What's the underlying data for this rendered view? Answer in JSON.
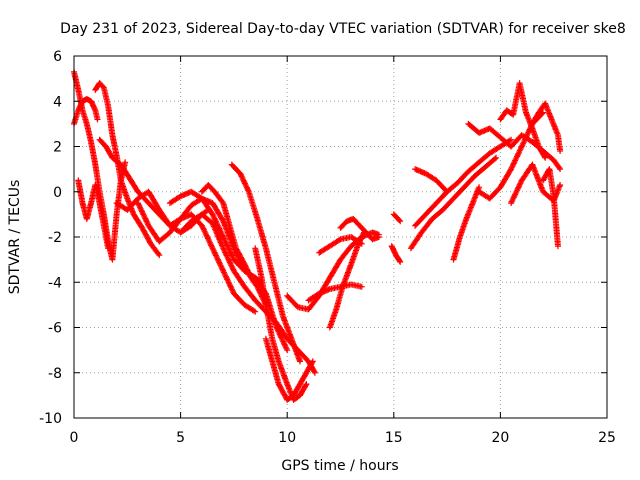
{
  "chart_data": {
    "type": "scatter",
    "title": "Day 231 of 2023, Sidereal Day-to-day VTEC variation (SDTVAR) for receiver ske8",
    "xlabel": "GPS time / hours",
    "ylabel": "SDTVAR / TECUs",
    "xlim": [
      0,
      25
    ],
    "ylim": [
      -10,
      6
    ],
    "x_ticks": [
      0,
      5,
      10,
      15,
      20,
      25
    ],
    "y_ticks": [
      -10,
      -8,
      -6,
      -4,
      -2,
      0,
      2,
      4,
      6
    ],
    "x_tick_labels": [
      "0",
      "5",
      "10",
      "15",
      "20",
      "25"
    ],
    "y_tick_labels": [
      "-10",
      "-8",
      "-6",
      "-4",
      "-2",
      "0",
      "2",
      "4",
      "6"
    ],
    "grid": true,
    "marker": "+",
    "color": "#ff0000",
    "series": [
      {
        "name": "s1",
        "x": [
          0.0,
          0.2,
          0.4,
          0.6,
          0.8,
          1.0,
          1.2,
          1.4,
          1.6,
          1.8,
          2.0,
          2.2,
          2.4
        ],
        "y": [
          5.3,
          4.5,
          3.6,
          3.0,
          2.2,
          1.2,
          0.0,
          -1.0,
          -2.2,
          -3.0,
          -1.0,
          0.5,
          1.3
        ]
      },
      {
        "name": "s2",
        "x": [
          0.0,
          0.2,
          0.4,
          0.6,
          0.8,
          1.0,
          1.1
        ],
        "y": [
          3.0,
          3.6,
          4.0,
          4.1,
          4.0,
          3.6,
          3.2
        ]
      },
      {
        "name": "s3",
        "x": [
          0.2,
          0.4,
          0.6,
          0.8,
          1.0,
          1.2,
          1.4,
          1.6
        ],
        "y": [
          0.5,
          -0.5,
          -1.2,
          -0.5,
          0.3,
          -0.5,
          -1.5,
          -2.5
        ]
      },
      {
        "name": "s4",
        "x": [
          1.0,
          1.2,
          1.4,
          1.6,
          1.8,
          2.0,
          2.2,
          2.5,
          2.8,
          3.2,
          3.6,
          4.0
        ],
        "y": [
          4.5,
          4.8,
          4.6,
          3.8,
          2.5,
          1.6,
          0.5,
          -0.3,
          -1.0,
          -1.6,
          -2.3,
          -2.8
        ]
      },
      {
        "name": "s5",
        "x": [
          1.2,
          1.5,
          1.8,
          2.2,
          2.6,
          3.0,
          3.5,
          4.0,
          4.5,
          5.0,
          5.5,
          6.0,
          6.3
        ],
        "y": [
          2.3,
          2.0,
          1.5,
          1.2,
          0.6,
          0.0,
          -0.5,
          -1.0,
          -1.5,
          -1.8,
          -1.5,
          -1.0,
          -0.8
        ]
      },
      {
        "name": "s6",
        "x": [
          2.0,
          2.5,
          3.0,
          3.5,
          4.0,
          4.5,
          5.0,
          5.5,
          6.0,
          6.5,
          7.0,
          7.5,
          8.0,
          8.5,
          8.8
        ],
        "y": [
          -0.5,
          -0.8,
          -0.3,
          0.0,
          -0.8,
          -1.5,
          -1.2,
          -0.6,
          -0.3,
          -0.5,
          -1.3,
          -2.5,
          -3.5,
          -3.8,
          -4.0
        ]
      },
      {
        "name": "s7",
        "x": [
          3.0,
          3.5,
          4.0,
          4.5,
          5.0,
          5.5,
          6.0,
          6.5,
          7.0,
          7.5,
          8.0,
          8.5
        ],
        "y": [
          -0.5,
          -1.5,
          -2.2,
          -1.8,
          -1.2,
          -1.0,
          -1.5,
          -2.5,
          -3.5,
          -4.5,
          -5.0,
          -5.3
        ]
      },
      {
        "name": "s8",
        "x": [
          4.5,
          5.0,
          5.5,
          6.0,
          6.5,
          7.0,
          7.5,
          8.0,
          8.5,
          9.0,
          9.5,
          10.0
        ],
        "y": [
          -0.5,
          -0.2,
          0.0,
          -0.3,
          -1.0,
          -2.0,
          -3.0,
          -3.5,
          -3.8,
          -4.5,
          -6.0,
          -7.0
        ]
      },
      {
        "name": "s9",
        "x": [
          5.0,
          5.5,
          6.0,
          6.5,
          7.0,
          7.5,
          8.0,
          8.5,
          9.0,
          9.5,
          10.0,
          10.5,
          11.0,
          11.3
        ],
        "y": [
          -1.8,
          -1.3,
          -1.0,
          -1.4,
          -2.5,
          -3.5,
          -4.2,
          -4.8,
          -5.3,
          -5.8,
          -6.5,
          -7.0,
          -7.5,
          -8.0
        ]
      },
      {
        "name": "s10",
        "x": [
          6.0,
          6.3,
          6.6,
          7.0,
          7.3,
          7.6,
          8.0,
          8.3,
          8.6,
          9.0
        ],
        "y": [
          0.0,
          0.3,
          0.0,
          -0.5,
          -1.5,
          -2.5,
          -3.2,
          -3.8,
          -4.2,
          -5.0
        ]
      },
      {
        "name": "s11",
        "x": [
          7.4,
          7.8,
          8.2,
          8.6,
          9.0,
          9.4,
          9.8,
          10.2,
          10.6
        ],
        "y": [
          1.2,
          0.8,
          0.0,
          -1.2,
          -2.5,
          -4.0,
          -5.5,
          -6.5,
          -7.5
        ]
      },
      {
        "name": "s12",
        "x": [
          8.5,
          8.8,
          9.0,
          9.3,
          9.6,
          10.0,
          10.3,
          10.6,
          10.9
        ],
        "y": [
          -2.5,
          -3.8,
          -5.0,
          -6.5,
          -7.5,
          -8.5,
          -9.2,
          -9.0,
          -8.5
        ]
      },
      {
        "name": "s13",
        "x": [
          9.0,
          9.3,
          9.6,
          10.0,
          10.3,
          10.6,
          10.9,
          11.2
        ],
        "y": [
          -6.5,
          -7.5,
          -8.5,
          -9.2,
          -9.0,
          -8.5,
          -8.0,
          -7.5
        ]
      },
      {
        "name": "s14",
        "x": [
          10.0,
          10.5,
          11.0,
          11.5,
          12.0,
          12.5,
          13.0,
          13.5,
          14.0,
          14.3
        ],
        "y": [
          -4.6,
          -5.1,
          -5.2,
          -4.6,
          -3.8,
          -3.0,
          -2.4,
          -2.0,
          -1.8,
          -1.9
        ]
      },
      {
        "name": "s15",
        "x": [
          11.0,
          11.5,
          12.0,
          12.5,
          13.0,
          13.5
        ],
        "y": [
          -4.8,
          -4.5,
          -4.3,
          -4.2,
          -4.1,
          -4.2
        ]
      },
      {
        "name": "s16",
        "x": [
          11.5,
          12.0,
          12.5,
          13.0,
          13.5
        ],
        "y": [
          -2.7,
          -2.4,
          -2.1,
          -2.0,
          -2.3
        ]
      },
      {
        "name": "s17",
        "x": [
          12.0,
          12.3,
          12.6,
          13.0,
          13.3,
          13.6
        ],
        "y": [
          -6.0,
          -5.2,
          -4.2,
          -3.2,
          -2.4,
          -1.8
        ]
      },
      {
        "name": "s18",
        "x": [
          12.5,
          12.8,
          13.1,
          13.4,
          13.7,
          14.0,
          14.3
        ],
        "y": [
          -1.6,
          -1.3,
          -1.2,
          -1.5,
          -1.8,
          -2.1,
          -2.0
        ]
      },
      {
        "name": "s19",
        "x": [
          14.9,
          15.1,
          15.3
        ],
        "y": [
          -2.4,
          -2.8,
          -3.1
        ]
      },
      {
        "name": "s20",
        "x": [
          15.0,
          15.3
        ],
        "y": [
          -1.0,
          -1.3
        ]
      },
      {
        "name": "s21",
        "x": [
          15.8,
          16.3,
          16.8,
          17.3,
          17.8,
          18.3,
          18.8,
          19.3,
          19.8
        ],
        "y": [
          -2.5,
          -1.8,
          -1.2,
          -0.8,
          -0.3,
          0.2,
          0.7,
          1.1,
          1.5
        ]
      },
      {
        "name": "s22",
        "x": [
          16.0,
          16.5,
          17.0,
          17.5,
          18.0,
          18.5,
          19.0,
          19.5,
          20.0,
          20.5
        ],
        "y": [
          -1.5,
          -1.0,
          -0.5,
          0.0,
          0.4,
          0.9,
          1.3,
          1.7,
          2.0,
          2.3
        ]
      },
      {
        "name": "s23",
        "x": [
          16.0,
          16.5,
          17.0,
          17.5
        ],
        "y": [
          1.0,
          0.8,
          0.5,
          0.0
        ]
      },
      {
        "name": "s24",
        "x": [
          17.8,
          18.1,
          18.4,
          18.7,
          19.0
        ],
        "y": [
          -3.0,
          -2.0,
          -1.2,
          -0.5,
          0.2
        ]
      },
      {
        "name": "s25",
        "x": [
          18.5,
          19.0,
          19.5,
          20.0,
          20.5,
          21.0,
          21.5,
          22.0,
          22.5,
          22.8
        ],
        "y": [
          3.0,
          2.6,
          2.8,
          2.4,
          2.0,
          2.5,
          2.2,
          1.8,
          1.4,
          1.0
        ]
      },
      {
        "name": "s26",
        "x": [
          19.0,
          19.5,
          20.0,
          20.5,
          21.0,
          21.5,
          22.0
        ],
        "y": [
          0.0,
          -0.3,
          0.2,
          1.0,
          2.0,
          3.0,
          3.5
        ]
      },
      {
        "name": "s27",
        "x": [
          20.0,
          20.3,
          20.6,
          20.9,
          21.2,
          21.5,
          21.8,
          22.1
        ],
        "y": [
          3.2,
          3.6,
          3.4,
          4.8,
          3.5,
          2.8,
          2.0,
          1.5
        ]
      },
      {
        "name": "s28",
        "x": [
          20.5,
          21.0,
          21.5,
          22.0,
          22.5,
          22.8
        ],
        "y": [
          -0.5,
          0.5,
          1.2,
          0.0,
          -0.4,
          0.3
        ]
      },
      {
        "name": "s29",
        "x": [
          21.5,
          21.8,
          22.1,
          22.4,
          22.7,
          22.8
        ],
        "y": [
          3.0,
          3.5,
          3.9,
          3.2,
          2.5,
          1.8
        ]
      },
      {
        "name": "s30",
        "x": [
          22.0,
          22.3,
          22.5,
          22.7
        ],
        "y": [
          0.5,
          1.0,
          -0.2,
          -2.4
        ]
      }
    ]
  }
}
